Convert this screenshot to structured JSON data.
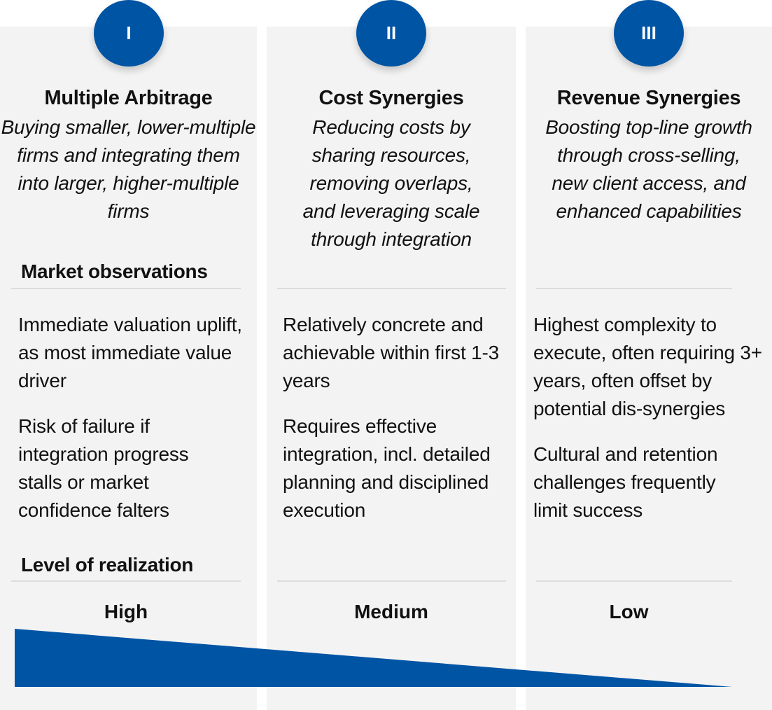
{
  "accent_color": "#0054a4",
  "columns": [
    {
      "badge": "I",
      "title": "Multiple Arbitrage",
      "description": "Buying smaller, lower-multiple firms and integrating them into larger, higher-multiple firms",
      "observations": [
        "Immediate valuation uplift, as most immediate value driver",
        "Risk of failure if integration progress stalls or market confidence falters"
      ],
      "realization": "High"
    },
    {
      "badge": "II",
      "title": "Cost Synergies",
      "description": "Reducing costs by sharing resources, removing overlaps, and leveraging scale through integration",
      "observations": [
        "Relatively concrete and achievable within first 1-3 years",
        "Requires effective integration, incl. detailed planning and disciplined execution"
      ],
      "realization": "Medium"
    },
    {
      "badge": "III",
      "title": "Revenue Synergies",
      "description": "Boosting top-line growth through cross-selling, new client access, and enhanced capabilities",
      "observations": [
        "Highest complexity to execute, often requiring 3+ years, often offset by potential dis-synergies",
        "Cultural and retention challenges frequently limit success"
      ],
      "realization": "Low"
    }
  ],
  "labels": {
    "market_observations": "Market observations",
    "level_of_realization": "Level of realization"
  }
}
